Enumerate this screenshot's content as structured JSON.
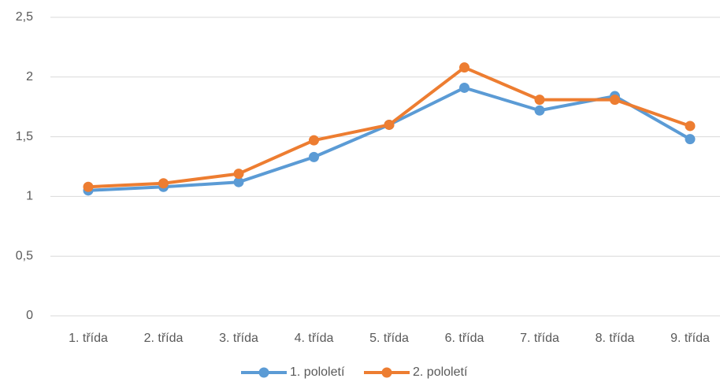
{
  "chart_data": {
    "type": "line",
    "categories": [
      "1. třída",
      "2. třída",
      "3. třída",
      "4. třída",
      "5. třída",
      "6. třída",
      "7. třída",
      "8. třída",
      "9. třída"
    ],
    "series": [
      {
        "name": "1. pololetí",
        "color": "#5b9bd5",
        "values": [
          1.05,
          1.08,
          1.12,
          1.33,
          1.6,
          1.91,
          1.72,
          1.84,
          1.48
        ]
      },
      {
        "name": "2. pololetí",
        "color": "#ed7d31",
        "values": [
          1.08,
          1.11,
          1.19,
          1.47,
          1.6,
          2.08,
          1.81,
          1.81,
          1.59
        ]
      }
    ],
    "ylim": [
      0,
      2.5
    ],
    "yticks": [
      0,
      {
        "value": 0.5,
        "label": "0,5"
      },
      1,
      {
        "value": 1.5,
        "label": "1,5"
      },
      2,
      {
        "value": 2.5,
        "label": "2,5"
      }
    ],
    "grid": true,
    "legend": "bottom"
  }
}
